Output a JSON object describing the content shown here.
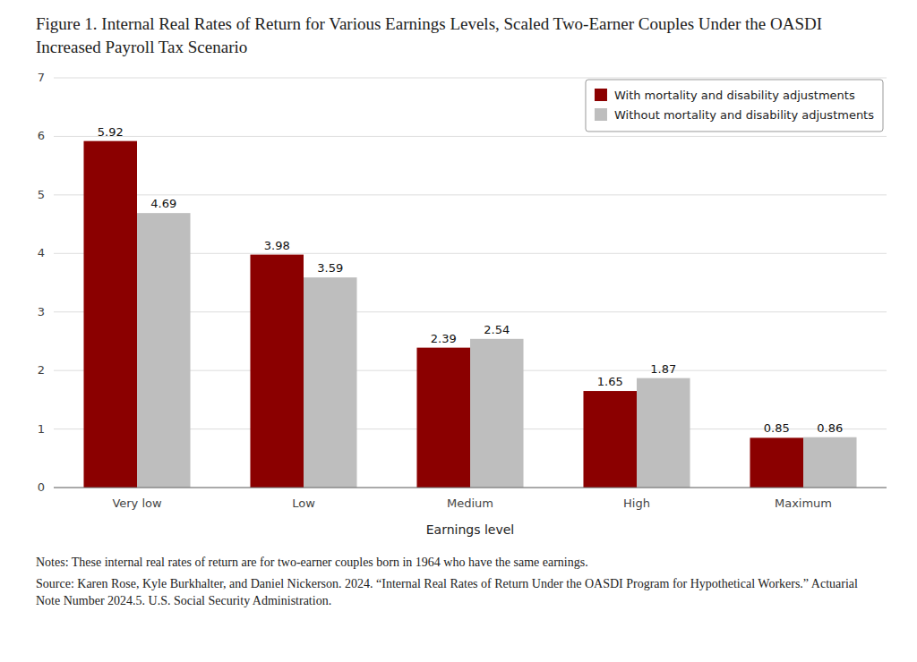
{
  "chart_data": {
    "type": "bar",
    "title": "Figure 1. Internal Real Rates of Return for Various Earnings Levels, Scaled Two-Earner Couples Under the OASDI Increased Payroll Tax Scenario",
    "x_label": "Earnings level",
    "categories": [
      "Very low",
      "Low",
      "Medium",
      "High",
      "Maximum"
    ],
    "series": [
      {
        "name": "With mortality and disability adjustments",
        "color": "#8B0000",
        "values": [
          5.92,
          3.98,
          2.39,
          1.65,
          0.85
        ]
      },
      {
        "name": "Without mortality and disability adjustments",
        "color": "#BEBEBE",
        "values": [
          4.69,
          3.59,
          2.54,
          1.87,
          0.86
        ]
      }
    ],
    "ylim": [
      0,
      7
    ],
    "yticks": [
      0,
      1,
      2,
      3,
      4,
      5,
      6,
      7
    ],
    "grid": true,
    "legend": "upper right",
    "data_labels": true,
    "annotations": [
      "Notes: These internal real rates of return are for two-earner couples born in 1964 who have the same earnings.",
      "Source: Karen Rose, Kyle Burkhalter, and Daniel Nickerson. 2024. “Internal Real Rates of Return Under the OASDI Program for Hypothetical Workers.” Actuarial Note Number 2024.5. U.S. Social Security Administration."
    ]
  }
}
